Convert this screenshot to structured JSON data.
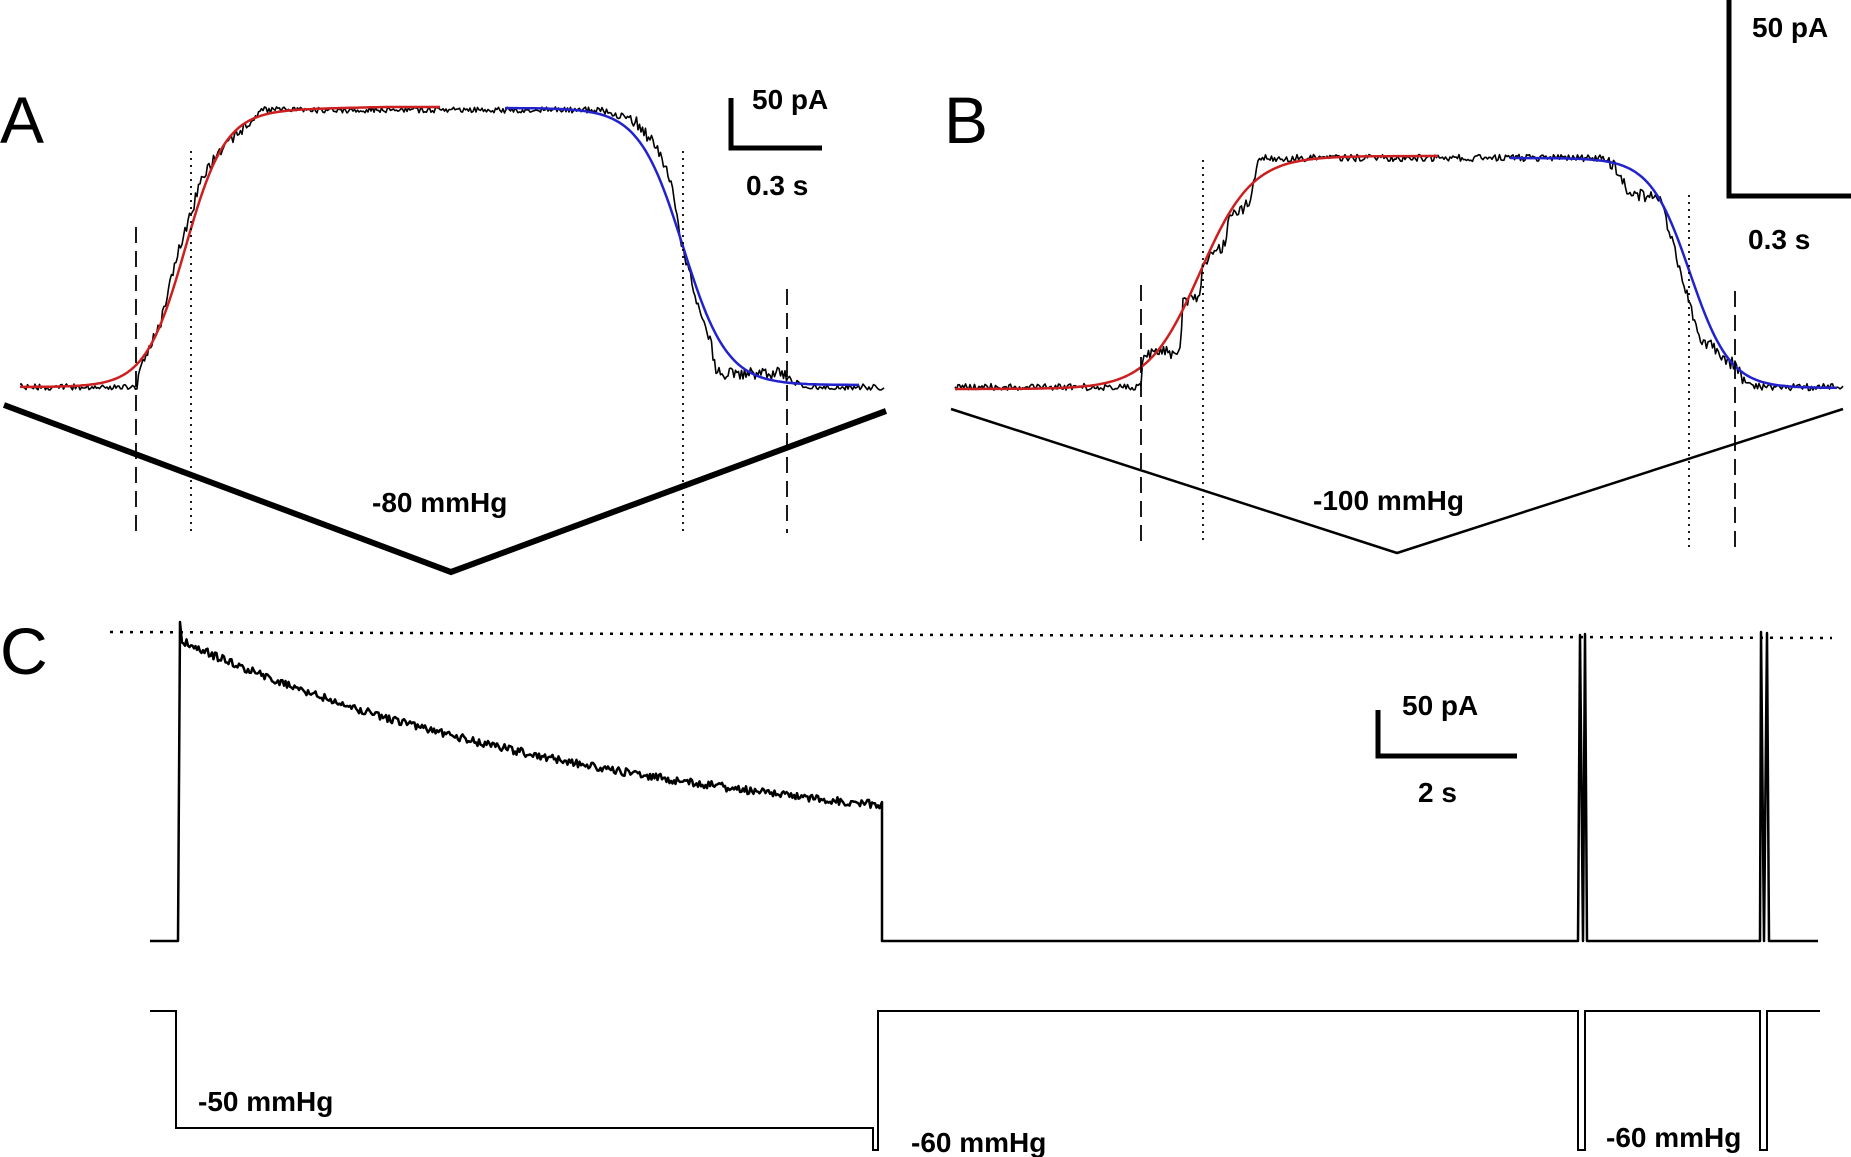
{
  "chart_data": [
    {
      "panel": "A",
      "type": "line",
      "scale_bar": {
        "current": "50 pA",
        "time": "0.3 s"
      },
      "pressure_label": "-80 mmHg",
      "fit_colors": {
        "rise": "#cc1f1f",
        "decay": "#2222cc"
      },
      "pressure_protocol": "symmetric ramp to -80 mmHg and back"
    },
    {
      "panel": "B",
      "type": "line",
      "scale_bar": {
        "current": "50 pA",
        "time": "0.3 s"
      },
      "pressure_label": "-100 mmHg",
      "fit_colors": {
        "rise": "#cc1f1f",
        "decay": "#2222cc"
      },
      "pressure_protocol": "symmetric ramp to -100 mmHg and back"
    },
    {
      "panel": "C",
      "type": "line",
      "scale_bar": {
        "current": "50 pA",
        "time": "2 s"
      },
      "pressure_labels": [
        "-50 mmHg",
        "-60 mmHg",
        "-60 mmHg"
      ],
      "pressure_protocol": "long -50 mmHg step followed by brief -60 mmHg test pulses"
    }
  ],
  "labels": {
    "panel_a": "A",
    "panel_b": "B",
    "panel_c": "C"
  }
}
